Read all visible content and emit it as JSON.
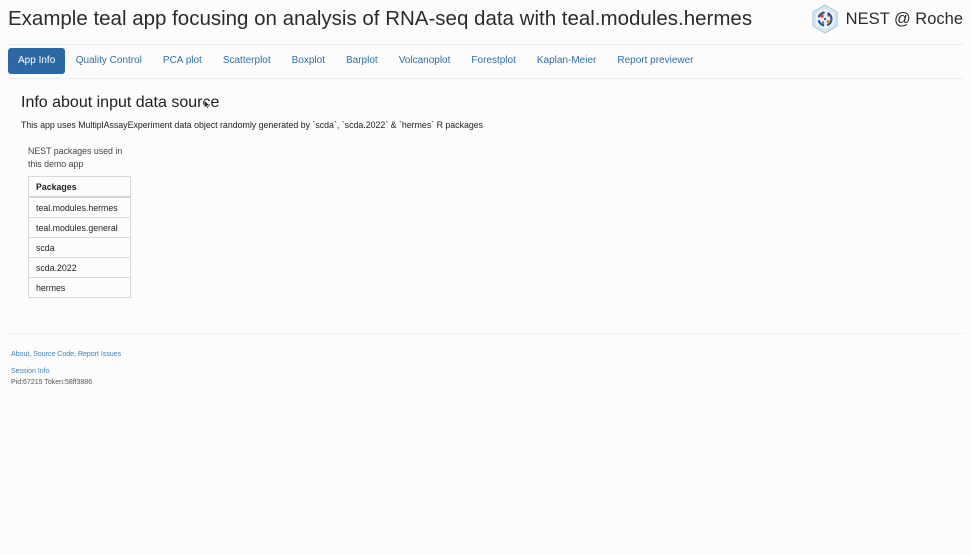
{
  "header": {
    "title": "Example teal app focusing on analysis of RNA-seq data with teal.modules.hermes",
    "brand_text": "NEST @ Roche",
    "logo_icon": "nest-logo-icon"
  },
  "tabs": [
    {
      "label": "App Info",
      "active": true
    },
    {
      "label": "Quality Control",
      "active": false
    },
    {
      "label": "PCA plot",
      "active": false
    },
    {
      "label": "Scatterplot",
      "active": false
    },
    {
      "label": "Boxplot",
      "active": false
    },
    {
      "label": "Barplot",
      "active": false
    },
    {
      "label": "Volcanoplot",
      "active": false
    },
    {
      "label": "Forestplot",
      "active": false
    },
    {
      "label": "Kaplan-Meier",
      "active": false
    },
    {
      "label": "Report previewer",
      "active": false
    }
  ],
  "main": {
    "title": "Info about input data source",
    "intro": "This app uses MultiplAssayExperiment data object randomly generated by `scda`, `scda.2022` & `hermes` R packages",
    "caption": "NEST packages used in this demo app",
    "table": {
      "header": "Packages",
      "rows": [
        "teal.modules.hermes",
        "teal.modules.general",
        "scda",
        "scda.2022",
        "hermes"
      ]
    }
  },
  "footer": {
    "about": "About",
    "source_code": "Source Code",
    "report_issues": "Report Issues",
    "separator": ", ",
    "session_info": "Session Info",
    "pid_token": "Pid:67215 Token:58ff3886"
  },
  "colors": {
    "accent": "#2c67a6",
    "link": "#2f6fa6"
  }
}
